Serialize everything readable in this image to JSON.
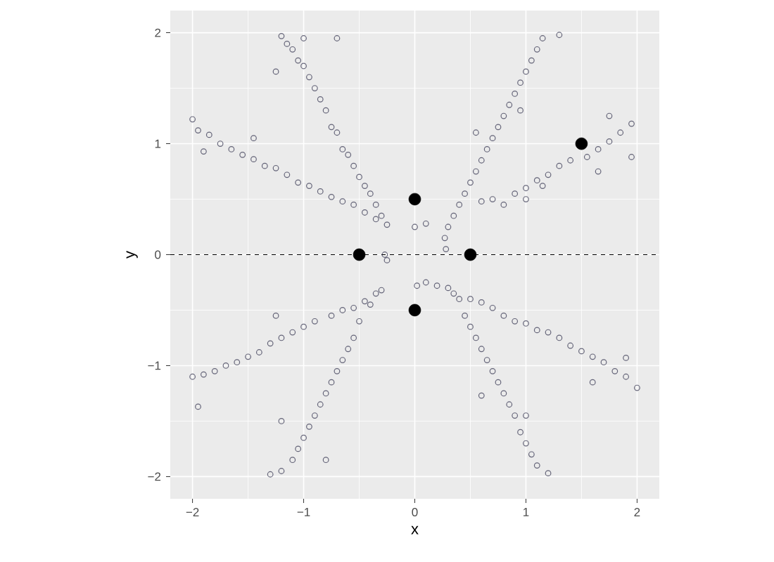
{
  "chart_data": {
    "type": "scatter",
    "xlabel": "x",
    "ylabel": "y",
    "xlim": [
      -2.2,
      2.2
    ],
    "ylim": [
      -2.2,
      2.2
    ],
    "xticks": [
      {
        "value": -2,
        "label": "−2"
      },
      {
        "value": -1,
        "label": "−1"
      },
      0,
      1,
      2
    ],
    "yticks": [
      {
        "value": -2,
        "label": "−2"
      },
      {
        "value": -1,
        "label": "−1"
      },
      0,
      1,
      2
    ],
    "grid": true,
    "marker": "circle",
    "ref_lines": [
      {
        "axis": "y",
        "value": 0,
        "color": "#000000",
        "line_style": "dashed"
      }
    ],
    "series": [
      {
        "color": "#1b1b3a",
        "x": [
          -0.25,
          -0.3,
          -0.35,
          -0.4,
          -0.45,
          -0.5,
          -0.55,
          -0.6,
          -0.65,
          -0.7,
          -0.75,
          -0.8,
          -0.85,
          -0.9,
          -0.95,
          -1.0,
          -1.05,
          -1.1,
          -1.15,
          -1.2,
          -1.0,
          -1.25,
          -0.7,
          -0.35,
          -0.45,
          -0.55,
          -0.65,
          -0.75,
          -0.85,
          -0.95,
          -1.05,
          -1.15,
          -1.25,
          -1.35,
          -1.45,
          -1.55,
          -1.65,
          -1.75,
          -1.85,
          -1.95,
          -2.0,
          -1.9,
          -1.45,
          0.27,
          0.3,
          0.35,
          0.4,
          0.45,
          0.5,
          0.55,
          0.6,
          0.65,
          0.7,
          0.75,
          0.8,
          0.85,
          0.9,
          0.95,
          1.0,
          1.05,
          1.1,
          1.15,
          1.3,
          0.95,
          0.55,
          0.6,
          0.7,
          0.8,
          0.9,
          1.0,
          1.1,
          1.2,
          1.3,
          1.4,
          1.55,
          1.65,
          1.75,
          1.85,
          1.95,
          1.75,
          1.95,
          1.65,
          1.0,
          1.15,
          -0.35,
          -0.45,
          -0.55,
          -0.65,
          -0.75,
          -0.9,
          -1.0,
          -1.1,
          -1.2,
          -1.3,
          -1.4,
          -1.5,
          -1.6,
          -1.7,
          -1.8,
          -1.9,
          -2.0,
          -1.95,
          -1.25,
          -0.3,
          -0.4,
          -0.5,
          -0.55,
          -0.6,
          -0.65,
          -0.7,
          -0.75,
          -0.8,
          -0.85,
          -0.9,
          -0.95,
          -1.0,
          -1.05,
          -1.1,
          -1.2,
          -1.3,
          -1.2,
          -0.8,
          0.3,
          0.4,
          0.45,
          0.5,
          0.55,
          0.6,
          0.65,
          0.7,
          0.75,
          0.8,
          0.85,
          0.9,
          0.95,
          1.0,
          1.05,
          1.1,
          1.2,
          1.0,
          0.6,
          0.02,
          0.1,
          0.2,
          0.35,
          0.5,
          0.6,
          0.7,
          0.8,
          0.9,
          1.0,
          1.1,
          1.2,
          1.3,
          1.4,
          1.5,
          1.6,
          1.7,
          1.8,
          1.9,
          2.0,
          1.9,
          1.6,
          0.0,
          0.1,
          -0.25,
          -0.27,
          0.28
        ],
        "values": [
          0.27,
          0.35,
          0.45,
          0.55,
          0.62,
          0.7,
          0.8,
          0.9,
          0.95,
          1.1,
          1.15,
          1.3,
          1.4,
          1.5,
          1.6,
          1.7,
          1.75,
          1.85,
          1.9,
          1.97,
          1.95,
          1.65,
          1.95,
          0.32,
          0.38,
          0.45,
          0.48,
          0.52,
          0.57,
          0.62,
          0.65,
          0.72,
          0.78,
          0.8,
          0.86,
          0.9,
          0.95,
          1.0,
          1.08,
          1.12,
          1.22,
          0.93,
          1.05,
          0.15,
          0.25,
          0.35,
          0.45,
          0.55,
          0.65,
          0.75,
          0.85,
          0.95,
          1.05,
          1.15,
          1.25,
          1.35,
          1.45,
          1.55,
          1.65,
          1.75,
          1.85,
          1.95,
          1.98,
          1.3,
          1.1,
          0.48,
          0.5,
          0.45,
          0.55,
          0.6,
          0.67,
          0.72,
          0.8,
          0.85,
          0.88,
          0.95,
          1.02,
          1.1,
          1.18,
          1.25,
          0.88,
          0.75,
          0.5,
          0.62,
          -0.35,
          -0.42,
          -0.48,
          -0.5,
          -0.55,
          -0.6,
          -0.65,
          -0.7,
          -0.75,
          -0.8,
          -0.88,
          -0.92,
          -0.97,
          -1.0,
          -1.05,
          -1.08,
          -1.1,
          -1.37,
          -0.55,
          -0.32,
          -0.45,
          -0.6,
          -0.75,
          -0.85,
          -0.95,
          -1.05,
          -1.15,
          -1.25,
          -1.35,
          -1.45,
          -1.55,
          -1.65,
          -1.75,
          -1.85,
          -1.95,
          -1.98,
          -1.5,
          -1.85,
          -0.3,
          -0.4,
          -0.55,
          -0.65,
          -0.75,
          -0.85,
          -0.95,
          -1.05,
          -1.15,
          -1.25,
          -1.35,
          -1.45,
          -1.6,
          -1.7,
          -1.8,
          -1.9,
          -1.97,
          -1.45,
          -1.27,
          -0.28,
          -0.25,
          -0.28,
          -0.35,
          -0.4,
          -0.43,
          -0.48,
          -0.55,
          -0.6,
          -0.62,
          -0.68,
          -0.7,
          -0.75,
          -0.82,
          -0.87,
          -0.92,
          -0.97,
          -1.05,
          -1.1,
          -1.2,
          -0.93,
          -1.15,
          0.25,
          0.28,
          -0.05,
          0.0,
          0.05
        ]
      },
      {
        "color": "#000000",
        "x": [
          0,
          0,
          -0.5,
          0.5,
          1.5
        ],
        "values": [
          0.5,
          -0.5,
          0,
          0,
          1
        ]
      }
    ]
  }
}
